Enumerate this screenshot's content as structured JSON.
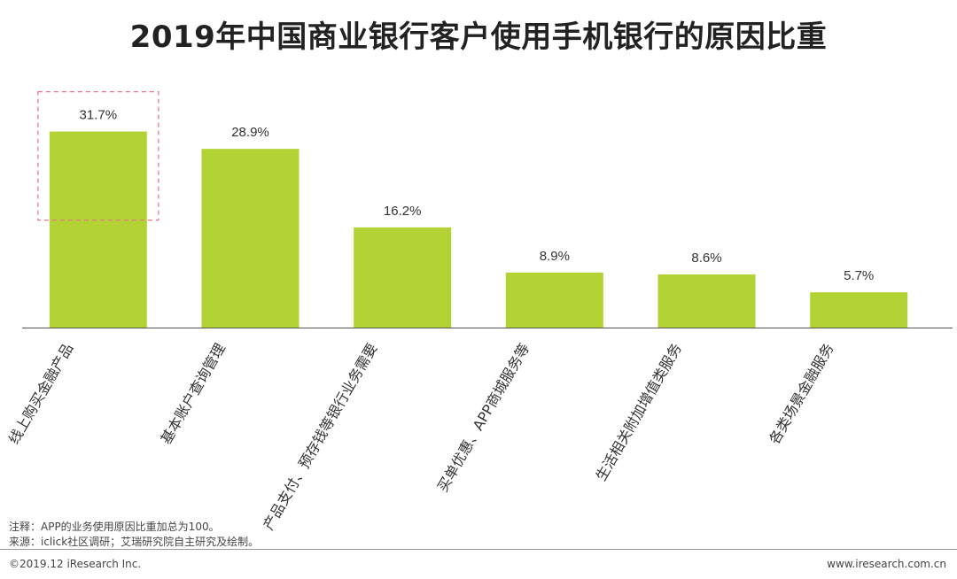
{
  "title": "2019年中国商业银行客户使用手机银行的原因比重",
  "chart_data": {
    "type": "bar",
    "categories": [
      "线上购买金融产品",
      "基本账户查询管理",
      "产品支付、预存钱等银行业务需要",
      "买单优惠、APP商城服务等",
      "生活相关附加增值类服务",
      "各类场景金融服务"
    ],
    "values": [
      31.7,
      28.9,
      16.2,
      8.9,
      8.6,
      5.7
    ],
    "value_labels": [
      "31.7%",
      "28.9%",
      "16.2%",
      "8.9%",
      "8.6%",
      "5.7%"
    ],
    "ylim": [
      0,
      32.5
    ],
    "bar_color": "#b3d334",
    "highlight_index": 0,
    "highlight_color": "#e8758a",
    "xlabel": "",
    "ylabel": ""
  },
  "notes": {
    "note": "注释：APP的业务使用原因比重加总为100。",
    "source": "来源：iclick社区调研；艾瑞研究院自主研究及绘制。"
  },
  "footer": {
    "copyright": "©2019.12 iResearch Inc.",
    "website": "www.iresearch.com.cn"
  }
}
